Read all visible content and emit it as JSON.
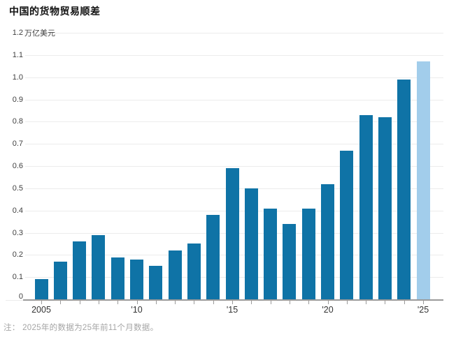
{
  "title": "中国的货物贸易顺差",
  "note": "注： 2025年的数据为25年前11个月数据。",
  "chart_data": {
    "type": "bar",
    "title": "中国的货物贸易顺差",
    "x": [
      2005,
      2006,
      2007,
      2008,
      2009,
      2010,
      2011,
      2012,
      2013,
      2014,
      2015,
      2016,
      2017,
      2018,
      2019,
      2020,
      2021,
      2022,
      2023,
      2024,
      2025
    ],
    "values": [
      0.09,
      0.17,
      0.26,
      0.29,
      0.19,
      0.18,
      0.15,
      0.22,
      0.25,
      0.38,
      0.59,
      0.5,
      0.41,
      0.34,
      0.41,
      0.52,
      0.67,
      0.83,
      0.82,
      0.99,
      1.07
    ],
    "highlight_last_index": 20,
    "ylim": [
      0,
      1.2
    ],
    "grid": "horizontal",
    "y_axis": {
      "unit": "万亿美元",
      "ticks": [
        {
          "v": 1.2,
          "label": "1.2"
        },
        {
          "v": 1.1,
          "label": "1.1"
        },
        {
          "v": 1.0,
          "label": "1.0"
        },
        {
          "v": 0.9,
          "label": "0.9"
        },
        {
          "v": 0.8,
          "label": "0.8"
        },
        {
          "v": 0.7,
          "label": "0.7"
        },
        {
          "v": 0.6,
          "label": "0.6"
        },
        {
          "v": 0.5,
          "label": "0.5"
        },
        {
          "v": 0.4,
          "label": "0.4"
        },
        {
          "v": 0.3,
          "label": "0.3"
        },
        {
          "v": 0.2,
          "label": "0.2"
        },
        {
          "v": 0.1,
          "label": "0.1"
        },
        {
          "v": 0,
          "label": "0"
        }
      ]
    },
    "x_axis": {
      "ticks": [
        {
          "i": 0,
          "label": "2005"
        },
        {
          "i": 5,
          "label": "'10"
        },
        {
          "i": 10,
          "label": "'15"
        },
        {
          "i": 15,
          "label": "'20"
        },
        {
          "i": 20,
          "label": "'25"
        }
      ]
    },
    "colors": {
      "bar": "#0f73a6",
      "bar_highlight": "#a2cdeb"
    }
  }
}
